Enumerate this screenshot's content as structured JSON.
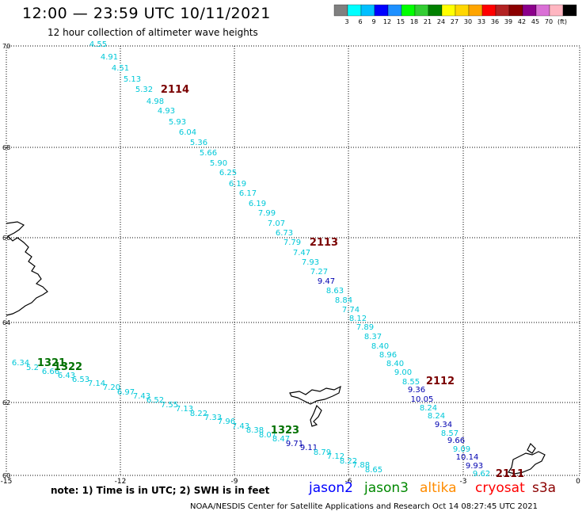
{
  "title": "12:00 — 23:59 UTC 10/11/2021",
  "subtitle": "12 hour collection of altimeter wave heights",
  "colorbar": {
    "colors": [
      "#808080",
      "#00ffff",
      "#00bfff",
      "#0000ff",
      "#1e90ff",
      "#00ff00",
      "#32cd32",
      "#008000",
      "#ffff00",
      "#ffd700",
      "#ffa500",
      "#ff0000",
      "#b22222",
      "#8b0000",
      "#8b008b",
      "#da70d6",
      "#ffb6c1",
      "#000000"
    ],
    "labels": [
      "3",
      "6",
      "9",
      "12",
      "15",
      "18",
      "21",
      "24",
      "27",
      "30",
      "33",
      "36",
      "39",
      "42",
      "45",
      "70",
      "(ft)"
    ]
  },
  "axes": {
    "lat_labels": [
      "70",
      "68",
      "66",
      "64",
      "62",
      "60"
    ],
    "lon_labels": [
      "-15",
      "-12",
      "-9",
      "-6",
      "-3",
      "0"
    ]
  },
  "passes": [
    {
      "id": "2114",
      "color": "#7a0000"
    },
    {
      "id": "2113",
      "color": "#7a0000"
    },
    {
      "id": "2112",
      "color": "#7a0000"
    },
    {
      "id": "2111",
      "color": "#7a0000"
    },
    {
      "id": "1321",
      "color": "#007000"
    },
    {
      "id": "1322",
      "color": "#007000"
    },
    {
      "id": "1323",
      "color": "#007000"
    }
  ],
  "track_values": {
    "cyan": [
      "4.55",
      "4.91",
      "4.51",
      "5.13",
      "5.32",
      "4.98",
      "4.93",
      "5.93",
      "6.04",
      "5.36",
      "5.66",
      "5.90",
      "6.25",
      "6.19",
      "6.17",
      "6.19",
      "7.99",
      "7.07",
      "6.73",
      "7.79",
      "7.47",
      "7.93",
      "7.27",
      "8.63",
      "8.84",
      "7.74",
      "8.12",
      "7.89",
      "8.37",
      "8.40",
      "8.96",
      "8.40",
      "9.00",
      "8.55",
      "8.24",
      "8.24",
      "8.57",
      "9.09",
      "9.62",
      "6.34",
      "5.2",
      "6.66",
      "6.43",
      "6.53",
      "7.14",
      "7.20",
      "6.97",
      "7.43",
      "6.52",
      "7.55",
      "7.13",
      "8.22",
      "7.33",
      "7.96",
      "7.43",
      "8.38",
      "8.07",
      "8.47",
      "8.79",
      "7.12",
      "8.22",
      "7.88",
      "8.65"
    ],
    "blue": [
      "9.47",
      "9.36",
      "10.05",
      "9.34",
      "9.66",
      "10.14",
      "9.93",
      "9.71",
      "9.11"
    ]
  },
  "note": "note: 1) Time is in UTC; 2) SWH is in feet",
  "legend": [
    {
      "label": "jason2",
      "color": "#0000ff"
    },
    {
      "label": "jason3",
      "color": "#008800"
    },
    {
      "label": "altika",
      "color": "#ff8c00"
    },
    {
      "label": "cryosat",
      "color": "#ff0000"
    },
    {
      "label": "s3a",
      "color": "#8b0000"
    }
  ],
  "footer": "NOAA/NESDIS Center for Satellite Applications and Research    Oct 14 08:27:45 UTC 2021"
}
